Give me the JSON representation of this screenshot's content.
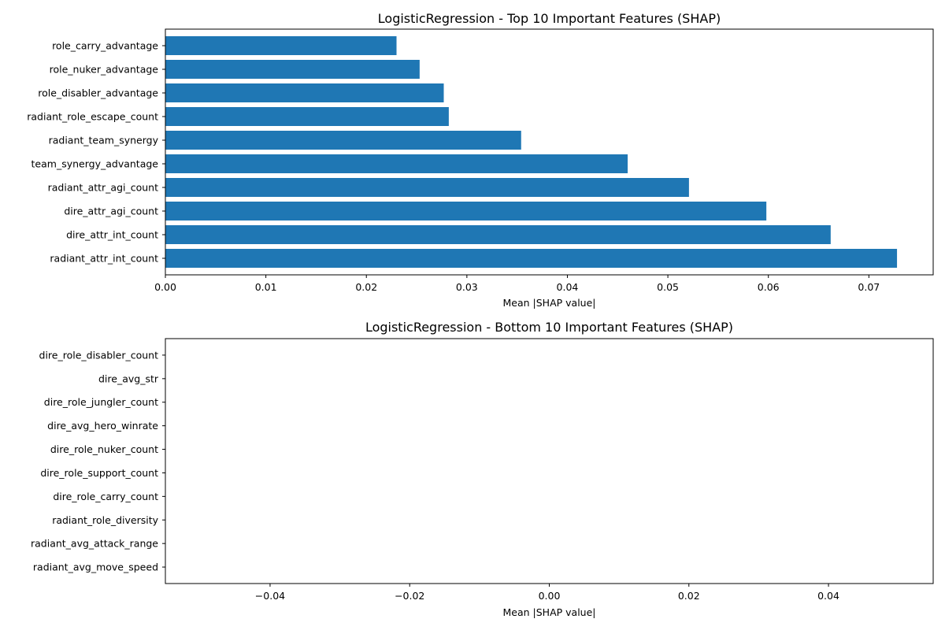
{
  "chart_data": [
    {
      "type": "bar",
      "orientation": "horizontal",
      "title": "LogisticRegression - Top 10 Important Features (SHAP)",
      "xlabel": "Mean |SHAP value|",
      "ylabel": "",
      "xlim": [
        0,
        0.0764
      ],
      "xticks": [
        0.0,
        0.01,
        0.02,
        0.03,
        0.04,
        0.05,
        0.06,
        0.07
      ],
      "xtick_labels": [
        "0.00",
        "0.01",
        "0.02",
        "0.03",
        "0.04",
        "0.05",
        "0.06",
        "0.07"
      ],
      "bar_color": "#1f77b4",
      "categories": [
        "radiant_attr_int_count",
        "dire_attr_int_count",
        "dire_attr_agi_count",
        "radiant_attr_agi_count",
        "team_synergy_advantage",
        "radiant_team_synergy",
        "radiant_role_escape_count",
        "role_disabler_advantage",
        "role_nuker_advantage",
        "role_carry_advantage"
      ],
      "values": [
        0.0728,
        0.0662,
        0.0598,
        0.0521,
        0.046,
        0.0354,
        0.0282,
        0.0277,
        0.0253,
        0.023
      ]
    },
    {
      "type": "bar",
      "orientation": "horizontal",
      "title": "LogisticRegression - Bottom 10 Important Features (SHAP)",
      "xlabel": "Mean |SHAP value|",
      "ylabel": "",
      "xlim": [
        -0.055,
        0.055
      ],
      "xticks": [
        -0.04,
        -0.02,
        0.0,
        0.02,
        0.04
      ],
      "xtick_labels": [
        "−0.04",
        "−0.02",
        "0.00",
        "0.02",
        "0.04"
      ],
      "bar_color": "#1f77b4",
      "categories": [
        "radiant_avg_move_speed",
        "radiant_avg_attack_range",
        "radiant_role_diversity",
        "dire_role_carry_count",
        "dire_role_support_count",
        "dire_role_nuker_count",
        "dire_avg_hero_winrate",
        "dire_role_jungler_count",
        "dire_avg_str",
        "dire_role_disabler_count"
      ],
      "values": [
        0,
        0,
        0,
        0,
        0,
        0,
        0,
        0,
        0,
        0
      ]
    }
  ]
}
